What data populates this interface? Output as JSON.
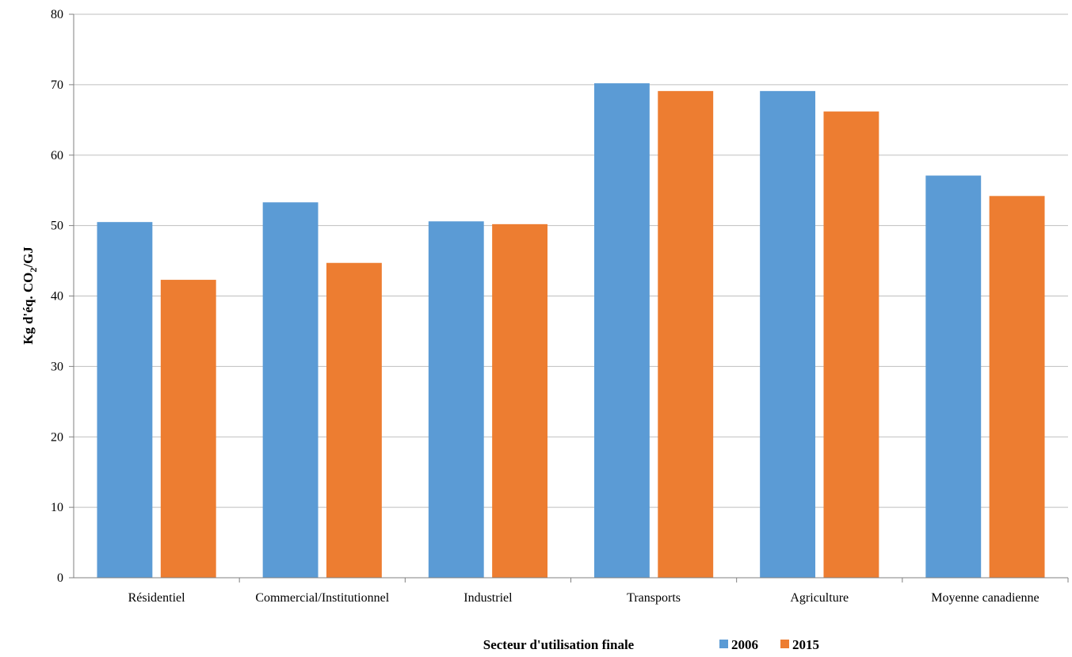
{
  "chart_data": {
    "type": "bar",
    "title": "",
    "xlabel": "Secteur d'utilisation finale",
    "ylabel": {
      "prefix": "Kg d'éq. CO",
      "subscript": "2",
      "suffix": "/GJ"
    },
    "ylim": [
      0,
      80
    ],
    "yticks": [
      0,
      10,
      20,
      30,
      40,
      50,
      60,
      70,
      80
    ],
    "grid": true,
    "legend_position": "bottom",
    "categories": [
      "Résidentiel",
      "Commercial/Institutionnel",
      "Industriel",
      "Transports",
      "Agriculture",
      "Moyenne canadienne"
    ],
    "series": [
      {
        "name": "2006",
        "color": "#5B9BD5",
        "values": [
          50.5,
          53.3,
          50.6,
          70.2,
          69.1,
          57.1
        ]
      },
      {
        "name": "2015",
        "color": "#ED7D31",
        "values": [
          42.3,
          44.7,
          50.2,
          69.1,
          66.2,
          54.2
        ]
      }
    ]
  }
}
